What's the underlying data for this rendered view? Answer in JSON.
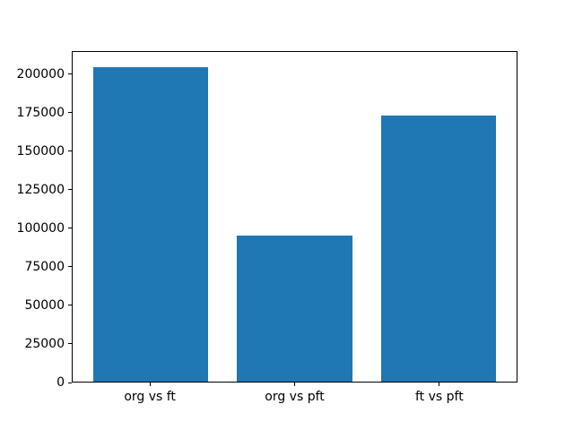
{
  "chart_data": {
    "type": "bar",
    "title": "",
    "xlabel": "",
    "ylabel": "",
    "categories": [
      "org vs ft",
      "org vs pft",
      "ft vs pft"
    ],
    "values": [
      204900,
      95500,
      173500
    ],
    "bar_color": "#1f77b4",
    "bar_width": 0.8,
    "xlim": [
      -0.54,
      2.54
    ],
    "ylim": [
      0,
      215000
    ],
    "yticks": [
      0,
      25000,
      50000,
      75000,
      100000,
      125000,
      150000,
      175000,
      200000
    ],
    "grid": false,
    "legend_position": "none",
    "background_color": "#ffffff",
    "axis_color": "#000000"
  }
}
